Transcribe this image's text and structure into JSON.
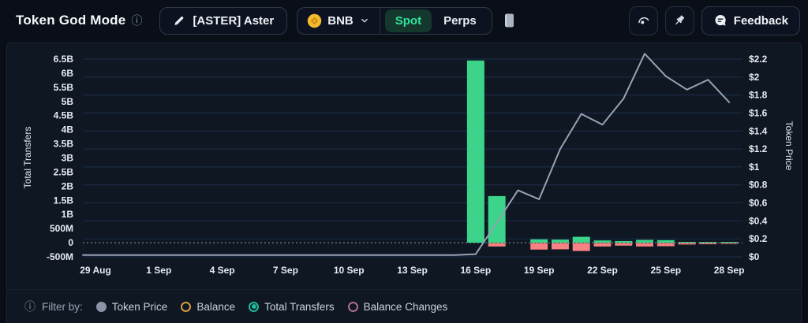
{
  "header": {
    "title": "Token God Mode",
    "token_button": {
      "label": "[ASTER] Aster"
    },
    "chain_selector": {
      "label": "BNB",
      "coin_color": "#f3ba2f"
    },
    "market_tabs": [
      {
        "label": "Spot",
        "selected": true,
        "active_bg": "#15382e",
        "active_color": "#2fe39a"
      },
      {
        "label": "Perps",
        "selected": false
      }
    ],
    "feedback_button": {
      "label": "Feedback"
    }
  },
  "filter_bar": {
    "label": "Filter by:",
    "options": [
      {
        "label": "Token Price",
        "selected": false,
        "color": "#8a94a6",
        "style": "filled"
      },
      {
        "label": "Balance",
        "selected": false,
        "color": "#d89a3e",
        "style": "ring"
      },
      {
        "label": "Total Transfers",
        "selected": true,
        "color": "#21b899",
        "style": "ring-dot"
      },
      {
        "label": "Balance Changes",
        "selected": false,
        "color": "#ab6f90",
        "style": "ring"
      }
    ]
  },
  "chart_data": {
    "type": "combo-bar-line",
    "grid": "horizontal-only",
    "dates": [
      "29 Aug",
      "30 Aug",
      "31 Aug",
      "1 Sep",
      "2 Sep",
      "3 Sep",
      "4 Sep",
      "5 Sep",
      "6 Sep",
      "7 Sep",
      "8 Sep",
      "9 Sep",
      "10 Sep",
      "11 Sep",
      "12 Sep",
      "13 Sep",
      "14 Sep",
      "15 Sep",
      "16 Sep",
      "17 Sep",
      "18 Sep",
      "19 Sep",
      "20 Sep",
      "21 Sep",
      "22 Sep",
      "23 Sep",
      "24 Sep",
      "25 Sep",
      "26 Sep",
      "27 Sep",
      "28 Sep"
    ],
    "x_axis": {
      "tick_labels": [
        "29 Aug",
        "1 Sep",
        "4 Sep",
        "7 Sep",
        "10 Sep",
        "13 Sep",
        "16 Sep",
        "19 Sep",
        "22 Sep",
        "25 Sep",
        "28 Sep"
      ],
      "tick_days": [
        0,
        3,
        6,
        9,
        12,
        15,
        18,
        21,
        24,
        27,
        30
      ]
    },
    "left_axis": {
      "title": "Total Transfers",
      "tick_labels": [
        "6.5B",
        "6B",
        "5.5B",
        "5B",
        "4.5B",
        "4B",
        "3.5B",
        "3B",
        "2.5B",
        "2B",
        "1.5B",
        "1B",
        "500M",
        "0",
        "-500M"
      ],
      "tick_values_b": [
        6.5,
        6,
        5.5,
        5,
        4.5,
        4,
        3.5,
        3,
        2.5,
        2,
        1.5,
        1,
        0.5,
        0,
        -0.5
      ],
      "range_b": [
        -0.5,
        6.5
      ]
    },
    "right_axis": {
      "title": "Token Price",
      "tick_labels": [
        "$2.2",
        "$2",
        "$1.8",
        "$1.6",
        "$1.4",
        "$1.2",
        "$1",
        "$0.8",
        "$0.6",
        "$0.4",
        "$0.2",
        "$0"
      ],
      "tick_values": [
        2.2,
        2,
        1.8,
        1.6,
        1.4,
        1.2,
        1,
        0.8,
        0.6,
        0.4,
        0.2,
        0
      ],
      "range": [
        0,
        2.2
      ]
    },
    "series": [
      {
        "name": "Total Transfers (positive)",
        "type": "bar",
        "axis": "left",
        "unit": "B",
        "color": "#3bd48a",
        "values": [
          0,
          0,
          0,
          0,
          0,
          0,
          0,
          0,
          0,
          0,
          0,
          0,
          0,
          0,
          0,
          0,
          0,
          0,
          6.45,
          1.65,
          0,
          0.12,
          0.11,
          0.21,
          0.08,
          0.06,
          0.1,
          0.09,
          0.03,
          0.02,
          0.015
        ]
      },
      {
        "name": "Total Transfers (negative)",
        "type": "bar",
        "axis": "left",
        "unit": "B",
        "color": "#f88181",
        "values": [
          0,
          0,
          0,
          0,
          0,
          0,
          0,
          0,
          0,
          0,
          0,
          0,
          0,
          0,
          0,
          0,
          0,
          0,
          0,
          -0.12,
          0,
          -0.23,
          -0.22,
          -0.28,
          -0.12,
          -0.09,
          -0.12,
          -0.11,
          -0.05,
          -0.04,
          -0.02
        ]
      },
      {
        "name": "Token Price",
        "type": "line",
        "axis": "right",
        "unit": "$",
        "color": "#97a2b4",
        "values": [
          0.02,
          0.02,
          0.02,
          0.02,
          0.02,
          0.02,
          0.02,
          0.02,
          0.02,
          0.02,
          0.02,
          0.02,
          0.02,
          0.02,
          0.02,
          0.02,
          0.02,
          0.02,
          0.03,
          0.38,
          0.74,
          0.64,
          1.2,
          1.59,
          1.47,
          1.76,
          2.26,
          2.01,
          1.86,
          1.97,
          1.72
        ]
      }
    ],
    "colors": {
      "gridline": "#1d2f4d",
      "zero_dotted_line": "#93a1b5",
      "tick_text": "#e6ecf3",
      "axis_title": "#dfe6ee",
      "panel_bg": "#0e1722"
    }
  }
}
